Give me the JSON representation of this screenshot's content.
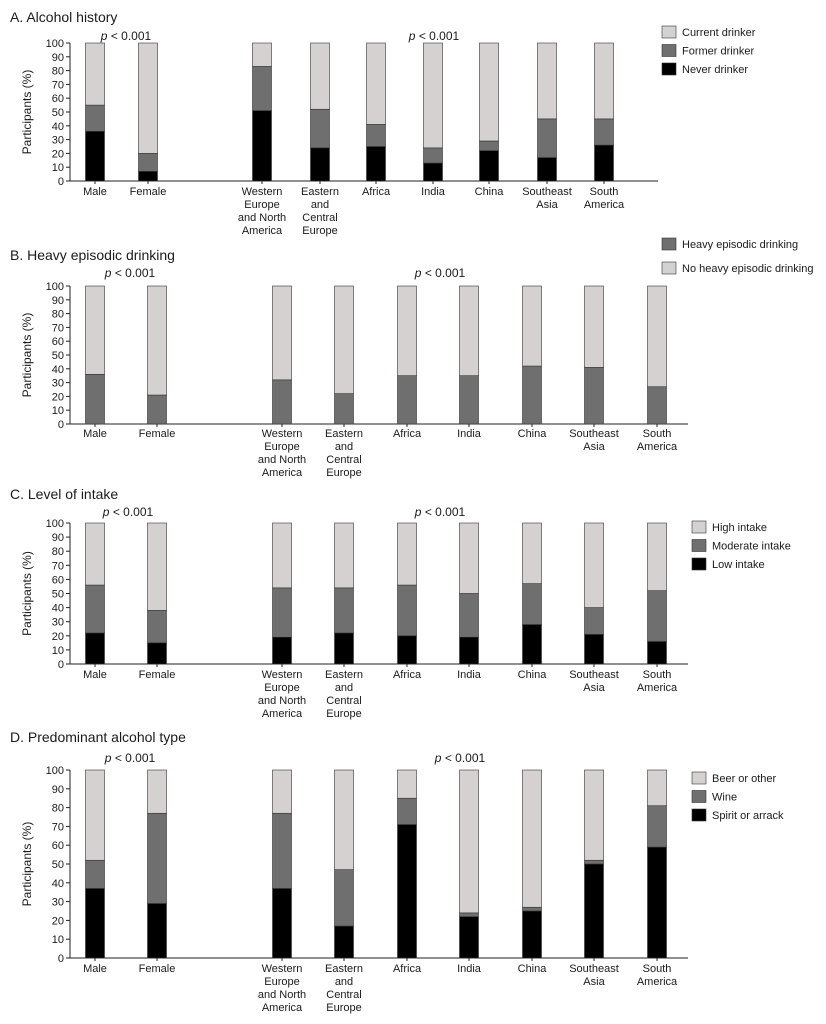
{
  "colors": {
    "current": "#d6d1d1",
    "former": "#6f6f6f",
    "never": "#000000",
    "light": "#d6d1d1",
    "mid": "#6f6f6f",
    "dark": "#000000"
  },
  "chart_data": [
    {
      "type": "bar",
      "stacked": true,
      "title": "A. Alcohol history",
      "ylabel": "Participants (%)",
      "ylim": [
        0,
        100
      ],
      "yticks": [
        0,
        10,
        20,
        30,
        40,
        50,
        60,
        70,
        80,
        90,
        100
      ],
      "p_value_labels": [
        "p < 0.001",
        "p < 0.001"
      ],
      "categories": [
        "Male",
        "Female",
        "Western\nEurope\nand North\nAmerica",
        "Eastern\nand\nCentral\nEurope",
        "Africa",
        "India",
        "China",
        "Southeast\nAsia",
        "South\nAmerica"
      ],
      "series": [
        {
          "name": "Never drinker",
          "color": "never",
          "values": [
            36,
            7,
            51,
            24,
            25,
            13,
            22,
            17,
            26
          ]
        },
        {
          "name": "Former drinker",
          "color": "former",
          "values": [
            19,
            13,
            32,
            28,
            16,
            11,
            7,
            28,
            19
          ]
        },
        {
          "name": "Current drinker",
          "color": "current",
          "values": [
            45,
            80,
            17,
            48,
            59,
            76,
            71,
            55,
            55
          ]
        }
      ],
      "legend": [
        "Current drinker",
        "Former drinker",
        "Never drinker"
      ],
      "legend_colors": [
        "current",
        "former",
        "never"
      ]
    },
    {
      "type": "bar",
      "stacked": true,
      "title": "B. Heavy episodic drinking",
      "ylabel": "Participants (%)",
      "ylim": [
        0,
        100
      ],
      "yticks": [
        0,
        10,
        20,
        30,
        40,
        50,
        60,
        70,
        80,
        90,
        100
      ],
      "p_value_labels": [
        "p < 0.001",
        "p < 0.001"
      ],
      "categories": [
        "Male",
        "Female",
        "Western\nEurope\nand North\nAmerica",
        "Eastern\nand\nCentral\nEurope",
        "Africa",
        "India",
        "China",
        "Southeast\nAsia",
        "South\nAmerica"
      ],
      "series": [
        {
          "name": "Heavy episodic drinking",
          "color": "former",
          "values": [
            36,
            21,
            32,
            22,
            35,
            35,
            42,
            41,
            27
          ]
        },
        {
          "name": "No heavy episodic drinking",
          "color": "current",
          "values": [
            64,
            79,
            68,
            78,
            65,
            65,
            58,
            59,
            73
          ]
        }
      ],
      "legend": [
        "Heavy episodic drinking",
        "No heavy episodic drinking"
      ],
      "legend_colors": [
        "former",
        "current"
      ]
    },
    {
      "type": "bar",
      "stacked": true,
      "title": "C. Level of intake",
      "ylabel": "Participants (%)",
      "ylim": [
        0,
        100
      ],
      "yticks": [
        0,
        10,
        20,
        30,
        40,
        50,
        60,
        70,
        80,
        90,
        100
      ],
      "p_value_labels": [
        "p < 0.001",
        "p < 0.001"
      ],
      "categories": [
        "Male",
        "Female",
        "Western\nEurope\nand North\nAmerica",
        "Eastern\nand\nCentral\nEurope",
        "Africa",
        "India",
        "China",
        "Southeast\nAsia",
        "South\nAmerica"
      ],
      "series": [
        {
          "name": "Low intake",
          "color": "never",
          "values": [
            22,
            15,
            19,
            22,
            20,
            19,
            28,
            21,
            16
          ]
        },
        {
          "name": "Moderate intake",
          "color": "former",
          "values": [
            34,
            23,
            35,
            32,
            36,
            31,
            29,
            19,
            36
          ]
        },
        {
          "name": "High intake",
          "color": "current",
          "values": [
            44,
            62,
            46,
            46,
            44,
            50,
            43,
            60,
            48
          ]
        }
      ],
      "legend": [
        "High intake",
        "Moderate intake",
        "Low intake"
      ],
      "legend_colors": [
        "current",
        "former",
        "never"
      ]
    },
    {
      "type": "bar",
      "stacked": true,
      "title": "D. Predominant alcohol type",
      "ylabel": "Participants (%)",
      "ylim": [
        0,
        100
      ],
      "yticks": [
        0,
        10,
        20,
        30,
        40,
        50,
        60,
        70,
        80,
        90,
        100
      ],
      "p_value_labels": [
        "p < 0.001",
        "p < 0.001"
      ],
      "categories": [
        "Male",
        "Female",
        "Western\nEurope\nand North\nAmerica",
        "Eastern\nand\nCentral\nEurope",
        "Africa",
        "India",
        "China",
        "Southeast\nAsia",
        "South\nAmerica"
      ],
      "series": [
        {
          "name": "Spirit or arrack",
          "color": "never",
          "values": [
            37,
            29,
            37,
            17,
            71,
            22,
            25,
            50,
            59
          ]
        },
        {
          "name": "Wine",
          "color": "former",
          "values": [
            15,
            48,
            40,
            30,
            14,
            2,
            2,
            2,
            22
          ]
        },
        {
          "name": "Beer or other",
          "color": "current",
          "values": [
            48,
            23,
            23,
            53,
            15,
            76,
            73,
            48,
            19
          ]
        }
      ],
      "legend": [
        "Beer or other",
        "Wine",
        "Spirit or arrack"
      ],
      "legend_colors": [
        "current",
        "former",
        "never"
      ]
    }
  ]
}
